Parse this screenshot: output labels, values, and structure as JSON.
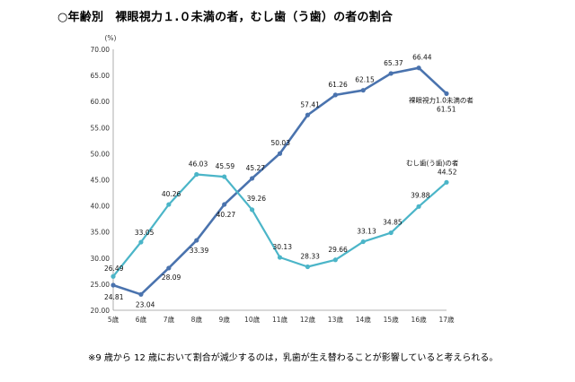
{
  "chart_data": {
    "type": "line",
    "title": "○年齢別　裸眼視力１.０未満の者，むし歯（う歯）の者の割合",
    "ylabel": "(%)",
    "xlabel": "",
    "ylim": [
      20,
      70
    ],
    "yticks": [
      "20.00",
      "25.00",
      "30.00",
      "35.00",
      "40.00",
      "45.00",
      "50.00",
      "55.00",
      "60.00",
      "65.00",
      "70.00"
    ],
    "categories": [
      "5歳",
      "6歳",
      "7歳",
      "8歳",
      "9歳",
      "10歳",
      "11歳",
      "12歳",
      "13歳",
      "14歳",
      "15歳",
      "16歳",
      "17歳"
    ],
    "series": [
      {
        "name": "裸眼視力1.0未満の者",
        "color": "#4a73ae",
        "values": [
          24.81,
          23.04,
          28.09,
          33.39,
          40.27,
          45.27,
          50.03,
          57.41,
          61.26,
          62.15,
          65.37,
          66.44,
          61.51
        ],
        "value_labels": [
          "24.81",
          "23.04",
          "28.09",
          "33.39",
          "40.27",
          "45.27",
          "50.03",
          "57.41",
          "61.26",
          "62.15",
          "65.37",
          "66.44",
          "61.51"
        ]
      },
      {
        "name": "むし歯(う歯)の者",
        "color": "#4bb5c8",
        "values": [
          26.49,
          33.05,
          40.26,
          46.03,
          45.59,
          39.26,
          30.13,
          28.33,
          29.66,
          33.13,
          34.85,
          39.88,
          44.52
        ],
        "value_labels": [
          "26.49",
          "33.05",
          "40.26",
          "46.03",
          "45.59",
          "39.26",
          "30.13",
          "28.33",
          "29.66",
          "33.13",
          "34.85",
          "39.88",
          "44.52"
        ]
      }
    ],
    "note": "※9 歳から 12 歳において割合が減少するのは，乳歯が生え替わることが影響していると考えられる。"
  }
}
